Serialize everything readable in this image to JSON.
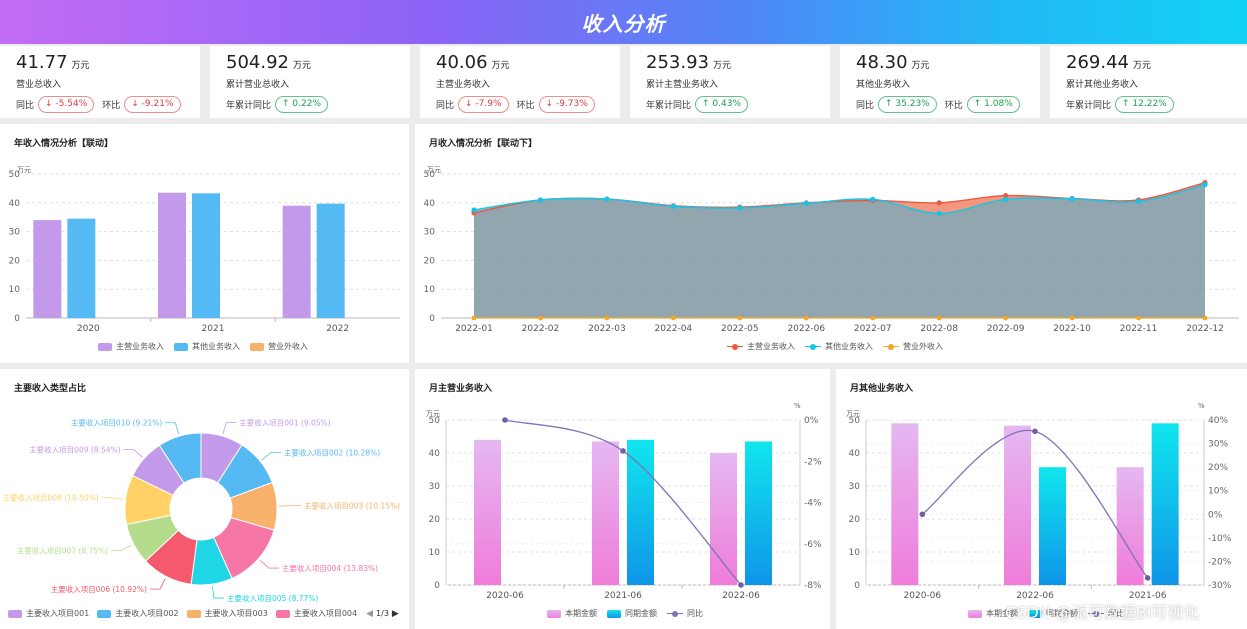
{
  "header": {
    "title": "收入分析"
  },
  "kpis": [
    {
      "value": "41.77",
      "unit": "万元",
      "label": "营业总收入",
      "metrics": [
        {
          "label": "同比",
          "value": "↓ -5.54%",
          "dir": "down"
        },
        {
          "label": "环比",
          "value": "↓ -9.21%",
          "dir": "down"
        }
      ]
    },
    {
      "value": "504.92",
      "unit": "万元",
      "label": "累计营业总收入",
      "metrics": [
        {
          "label": "年累计同比",
          "value": "↑ 0.22%",
          "dir": "up"
        }
      ]
    },
    {
      "value": "40.06",
      "unit": "万元",
      "label": "主营业务收入",
      "metrics": [
        {
          "label": "同比",
          "value": "↓ -7.9%",
          "dir": "down"
        },
        {
          "label": "环比",
          "value": "↓ -9.73%",
          "dir": "down"
        }
      ]
    },
    {
      "value": "253.93",
      "unit": "万元",
      "label": "累计主营业务收入",
      "metrics": [
        {
          "label": "年累计同比",
          "value": "↑ 0.43%",
          "dir": "up"
        }
      ]
    },
    {
      "value": "48.30",
      "unit": "万元",
      "label": "其他业务收入",
      "metrics": [
        {
          "label": "同比",
          "value": "↑ 35.23%",
          "dir": "up"
        },
        {
          "label": "环比",
          "value": "↑ 1.08%",
          "dir": "up"
        }
      ]
    },
    {
      "value": "269.44",
      "unit": "万元",
      "label": "累计其他业务收入",
      "metrics": [
        {
          "label": "年累计同比",
          "value": "↑ 12.22%",
          "dir": "up"
        }
      ]
    }
  ],
  "colors": {
    "purple": "#c39aea",
    "blue": "#55b9f3",
    "orange": "#f7b16b",
    "red": "#ea5a3d",
    "cyan": "#12c6ea",
    "amber": "#f5a623",
    "line": "#8271b8"
  },
  "watermark": "CSDN @派可数据BI可视化",
  "chart_data": [
    {
      "id": "annual",
      "type": "bar",
      "title": "年收入情况分析【联动】",
      "unit": "万元",
      "ylim": [
        0,
        50
      ],
      "yticks": [
        0,
        10,
        20,
        30,
        40,
        50
      ],
      "categories": [
        "2020",
        "2021",
        "2022"
      ],
      "series": [
        {
          "name": "主营业务收入",
          "values": [
            34,
            43.5,
            39
          ]
        },
        {
          "name": "其他业务收入",
          "values": [
            34.5,
            43.3,
            39.7
          ]
        },
        {
          "name": "营业外收入",
          "values": [
            0,
            0,
            0
          ]
        }
      ]
    },
    {
      "id": "monthly",
      "type": "area",
      "title": "月收入情况分析【联动下】",
      "unit": "万元",
      "ylim": [
        0,
        50
      ],
      "yticks": [
        0,
        10,
        20,
        30,
        40,
        50
      ],
      "categories": [
        "2022-01",
        "2022-02",
        "2022-03",
        "2022-04",
        "2022-05",
        "2022-06",
        "2022-07",
        "2022-08",
        "2022-09",
        "2022-10",
        "2022-11",
        "2022-12"
      ],
      "series": [
        {
          "name": "主营业务收入",
          "values": [
            36.5,
            41,
            41.3,
            39,
            38.5,
            40,
            40.8,
            40,
            42.5,
            41.5,
            41,
            47
          ]
        },
        {
          "name": "其他业务收入",
          "values": [
            37.5,
            41,
            41.3,
            38.8,
            38.2,
            39.8,
            41.2,
            36.3,
            41.2,
            41.4,
            40.5,
            46.3
          ]
        },
        {
          "name": "营业外收入",
          "values": [
            0,
            0,
            0,
            0,
            0,
            0,
            0,
            0,
            0,
            0,
            0,
            0
          ]
        }
      ]
    },
    {
      "id": "pie",
      "type": "pie",
      "title": "主要收入类型占比",
      "slices": [
        {
          "name": "主要收入项目001",
          "value": 9.05,
          "label": "主要收入项目001 (9.05%)"
        },
        {
          "name": "主要收入项目002",
          "value": 10.28,
          "label": "主要收入项目002 (10.28%)"
        },
        {
          "name": "主要收入项目003",
          "value": 10.15,
          "label": "主要收入项目003 (10.15%)"
        },
        {
          "name": "主要收入项目004",
          "value": 13.83,
          "label": "主要收入项目004 (13.83%)"
        },
        {
          "name": "主要收入项目005",
          "value": 8.77,
          "label": "主要收入项目005 (8.77%)"
        },
        {
          "name": "主要收入项目006",
          "value": 10.92,
          "label": "主要收入项目006 (10.92%)"
        },
        {
          "name": "主要收入项目007",
          "value": 8.75,
          "label": "主要收入项目007 (8.75%)"
        },
        {
          "name": "主要收入项目008",
          "value": 10.5,
          "label": "主要收入项目008 (10.50%)"
        },
        {
          "name": "主要收入项目009",
          "value": 8.54,
          "label": "主要收入项目009 (8.54%)"
        },
        {
          "name": "主要收入项目010",
          "value": 9.21,
          "label": "主要收入项目010 (9.21%)"
        }
      ],
      "slice_colors": [
        "#c39aea",
        "#55b9f3",
        "#f7b16b",
        "#f676a8",
        "#1ed6e6",
        "#f5596e",
        "#b4dc8c",
        "#ffd166",
        "#c39aea",
        "#55b9f3"
      ],
      "legend": [
        "主要收入项目001",
        "主要收入项目002",
        "主要收入项目003",
        "主要收入项目004"
      ],
      "pager": "1/3"
    },
    {
      "id": "main_month",
      "type": "bar+line",
      "title": "月主营业务收入",
      "unit_left": "万元",
      "unit_right": "%",
      "ylim": [
        0,
        50
      ],
      "yticks": [
        0,
        10,
        20,
        30,
        40,
        50
      ],
      "y2lim": [
        -8,
        0
      ],
      "y2ticks": [
        "0%",
        "-2%",
        "-4%",
        "-6%",
        "-8%"
      ],
      "categories": [
        "2020-06",
        "2021-06",
        "2022-06"
      ],
      "series": [
        {
          "name": "本期金额",
          "values": [
            44,
            43.5,
            40
          ]
        },
        {
          "name": "同期金额",
          "values": [
            null,
            44,
            43.5
          ]
        },
        {
          "name": "同比",
          "axis": "right",
          "values": [
            0,
            -1.5,
            -8
          ]
        }
      ]
    },
    {
      "id": "other_month",
      "type": "bar+line",
      "title": "月其他业务收入",
      "unit_left": "万元",
      "unit_right": "%",
      "ylim": [
        0,
        50
      ],
      "yticks": [
        0,
        10,
        20,
        30,
        40,
        50
      ],
      "y2lim": [
        -30,
        40
      ],
      "y2ticks": [
        "40%",
        "30%",
        "20%",
        "10%",
        "0%",
        "-10%",
        "-20%",
        "-30%"
      ],
      "categories": [
        "2020-06",
        "2022-06",
        "2021-06"
      ],
      "series": [
        {
          "name": "本期金额",
          "values": [
            49,
            48.3,
            35.7
          ]
        },
        {
          "name": "同期金额",
          "values": [
            null,
            35.7,
            49
          ]
        },
        {
          "name": "同比",
          "axis": "right",
          "values": [
            0,
            35.2,
            -27
          ]
        }
      ]
    }
  ]
}
